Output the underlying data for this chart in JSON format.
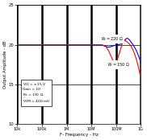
{
  "title": "",
  "xlabel": "F- Frequency - Hz",
  "ylabel": "Output Amplitude - dB",
  "xlim_log": [
    10000.0,
    1000000000.0
  ],
  "ylim": [
    10,
    25
  ],
  "yticks": [
    10,
    15,
    20,
    25
  ],
  "legend_text": [
    "V_CC = ±15 V",
    "Gain = 10",
    "R_L = 150 Ω",
    "V_OPR = 400 mV"
  ],
  "bg_color": "#ffffff",
  "line_color_blue": "#0000ff",
  "line_color_red": "#ff0000",
  "major_grid_lw": 1.8,
  "minor_grid_lw": 0.7,
  "grid_color": "#000000"
}
